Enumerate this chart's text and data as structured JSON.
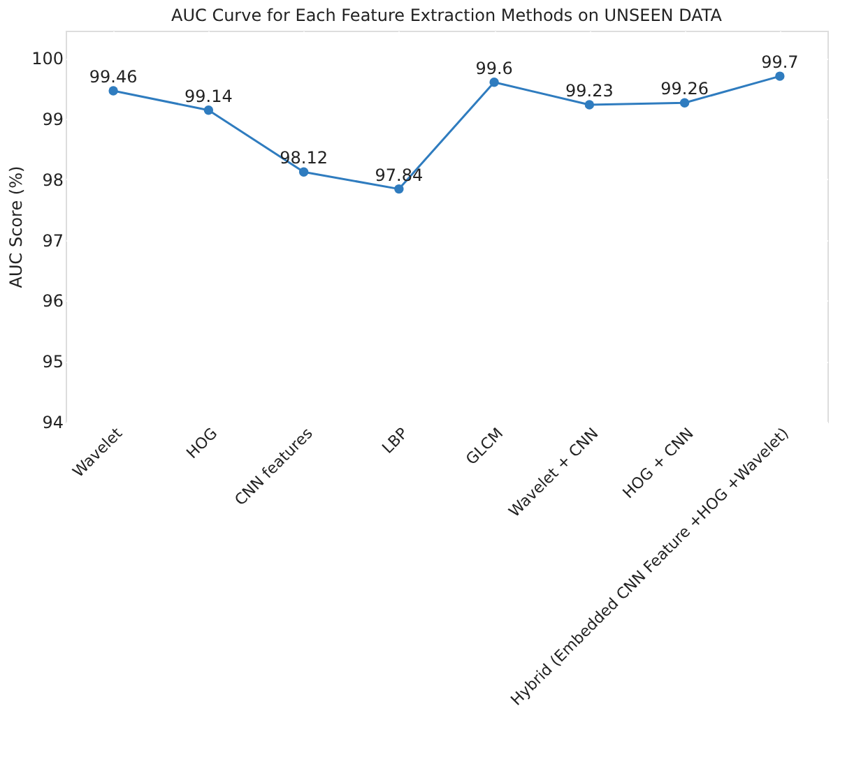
{
  "chart_data": {
    "type": "line",
    "title": "AUC Curve for Each Feature Extraction Methods on UNSEEN DATA",
    "ylabel": "AUC Score (%)",
    "categories": [
      "Wavelet",
      "HOG",
      "CNN features",
      "LBP",
      "GLCM",
      "Wavelet + CNN",
      "HOG + CNN",
      "Hybrid (Embedded CNN Feature +HOG +Wavelet)"
    ],
    "series": [
      {
        "color": "#2f7cbf",
        "values": [
          99.46,
          99.14,
          98.12,
          97.84,
          99.6,
          99.23,
          99.26,
          99.7
        ]
      }
    ],
    "ylim": [
      94,
      100.45
    ],
    "yticks": [
      94,
      95,
      96,
      97,
      98,
      99,
      100
    ],
    "grid": true,
    "marker": "circle",
    "line_style": "solid",
    "data_labels": true
  }
}
